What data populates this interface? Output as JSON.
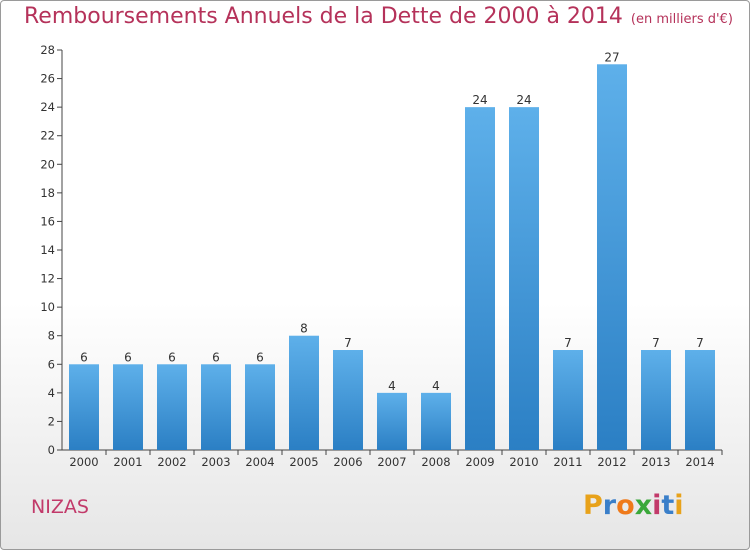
{
  "header": {
    "title": "Remboursements Annuels de la Dette de 2000 à 2014",
    "subtitle": "(en milliers d'€)"
  },
  "footer": {
    "commune": "NIZAS",
    "logo_letters": [
      "P",
      "r",
      "o",
      "x",
      "i",
      "t",
      "i"
    ],
    "logo_colors": [
      "#e8a21a",
      "#3a7fc9",
      "#ef7a1a",
      "#3aa83a",
      "#c23a6a",
      "#3a7fc9",
      "#e8a21a"
    ]
  },
  "colors": {
    "bar_light": "#5eb0ea",
    "bar_dark": "#2b7fc4",
    "title": "#b5325a"
  },
  "chart_data": {
    "type": "bar",
    "categories": [
      "2000",
      "2001",
      "2002",
      "2003",
      "2004",
      "2005",
      "2006",
      "2007",
      "2008",
      "2009",
      "2010",
      "2011",
      "2012",
      "2013",
      "2014"
    ],
    "values": [
      6,
      6,
      6,
      6,
      6,
      8,
      7,
      4,
      4,
      24,
      24,
      7,
      27,
      7,
      7
    ],
    "ylim": [
      0,
      28
    ],
    "yticks": [
      0,
      2,
      4,
      6,
      8,
      10,
      12,
      14,
      16,
      18,
      20,
      22,
      24,
      26,
      28
    ],
    "grid": false
  }
}
